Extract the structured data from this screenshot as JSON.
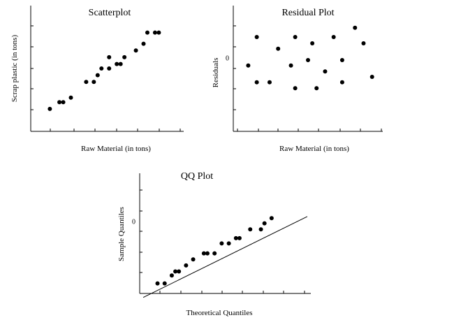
{
  "chart_data": [
    {
      "type": "scatter",
      "title": "Scatterplot",
      "xlabel": "Raw Material (in tons)",
      "ylabel": "Scrap plastic (in tons)",
      "x_ticks": 7,
      "y_ticks": 5,
      "points": [
        [
          3.0,
          1.0
        ],
        [
          3.5,
          1.3
        ],
        [
          3.7,
          1.3
        ],
        [
          4.1,
          1.5
        ],
        [
          4.9,
          2.2
        ],
        [
          5.3,
          2.2
        ],
        [
          5.5,
          2.5
        ],
        [
          5.7,
          2.8
        ],
        [
          6.1,
          2.8
        ],
        [
          6.1,
          3.3
        ],
        [
          6.5,
          3.0
        ],
        [
          6.7,
          3.0
        ],
        [
          6.9,
          3.3
        ],
        [
          7.5,
          3.6
        ],
        [
          7.9,
          3.9
        ],
        [
          8.1,
          4.4
        ],
        [
          8.5,
          4.4
        ],
        [
          8.7,
          4.4
        ]
      ],
      "xlim": [
        2.0,
        10.0
      ],
      "ylim": [
        0.0,
        5.6
      ]
    },
    {
      "type": "scatter",
      "title": "Residual Plot",
      "xlabel": "Raw Material (in tons)",
      "ylabel": "Residuals",
      "y_tick_labels": [
        {
          "value": 0,
          "label": "0"
        }
      ],
      "x_ticks": 7,
      "y_ticks": 5,
      "points": [
        [
          2.7,
          -0.18
        ],
        [
          3.1,
          0.5
        ],
        [
          3.1,
          -0.58
        ],
        [
          3.7,
          -0.58
        ],
        [
          4.1,
          0.22
        ],
        [
          4.7,
          -0.18
        ],
        [
          4.9,
          0.5
        ],
        [
          4.9,
          -0.72
        ],
        [
          5.5,
          -0.05
        ],
        [
          5.7,
          0.35
        ],
        [
          5.9,
          -0.72
        ],
        [
          6.3,
          -0.32
        ],
        [
          6.7,
          0.5
        ],
        [
          7.1,
          -0.05
        ],
        [
          7.1,
          -0.58
        ],
        [
          7.7,
          0.72
        ],
        [
          8.1,
          0.35
        ],
        [
          8.5,
          -0.45
        ]
      ],
      "xlim": [
        2.0,
        9.0
      ],
      "ylim": [
        -1.75,
        1.25
      ]
    },
    {
      "type": "scatter",
      "title": "QQ Plot",
      "xlabel": "Theoretical Quantiles",
      "ylabel": "Sample Quantiles",
      "y_tick_labels": [
        {
          "value": 0,
          "label": "0"
        }
      ],
      "x_ticks": 5,
      "y_ticks": 4,
      "reference_line": [
        [
          -2.3,
          -1.9
        ],
        [
          2.3,
          0.12
        ]
      ],
      "points": [
        [
          -1.9,
          -1.55
        ],
        [
          -1.7,
          -1.55
        ],
        [
          -1.5,
          -1.35
        ],
        [
          -1.4,
          -1.25
        ],
        [
          -1.3,
          -1.25
        ],
        [
          -1.1,
          -1.1
        ],
        [
          -0.9,
          -0.95
        ],
        [
          -0.6,
          -0.8
        ],
        [
          -0.5,
          -0.8
        ],
        [
          -0.3,
          -0.8
        ],
        [
          -0.1,
          -0.55
        ],
        [
          0.1,
          -0.55
        ],
        [
          0.3,
          -0.42
        ],
        [
          0.4,
          -0.42
        ],
        [
          0.7,
          -0.2
        ],
        [
          1.0,
          -0.2
        ],
        [
          1.1,
          -0.05
        ],
        [
          1.3,
          0.08
        ]
      ],
      "xlim": [
        -2.4,
        2.4
      ],
      "ylim": [
        -1.8,
        1.2
      ]
    }
  ]
}
